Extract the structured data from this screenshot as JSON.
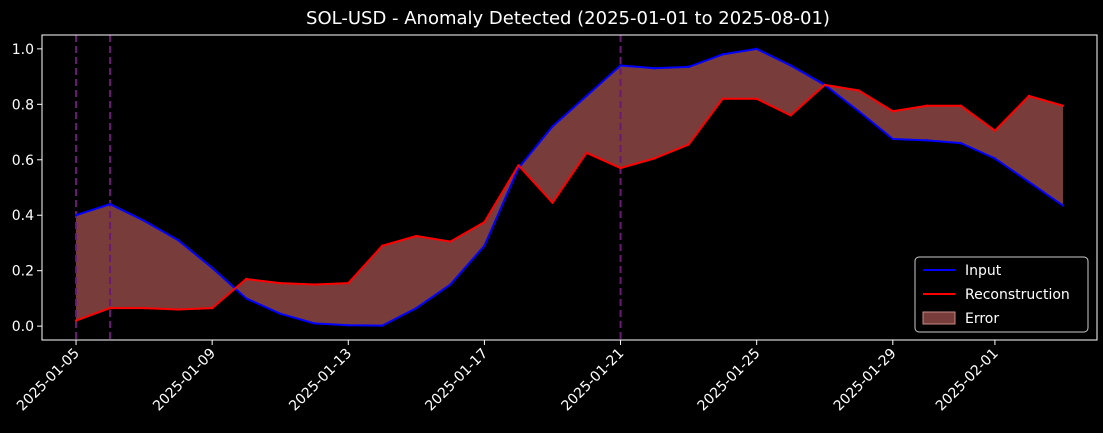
{
  "chart_data": {
    "type": "line",
    "title": "SOL-USD - Anomaly Detected (2025-01-01 to 2025-08-01)",
    "xlabel": "",
    "ylabel": "",
    "x": [
      "2025-01-05",
      "2025-01-06",
      "2025-01-07",
      "2025-01-08",
      "2025-01-09",
      "2025-01-10",
      "2025-01-11",
      "2025-01-12",
      "2025-01-13",
      "2025-01-14",
      "2025-01-15",
      "2025-01-16",
      "2025-01-17",
      "2025-01-18",
      "2025-01-19",
      "2025-01-20",
      "2025-01-21",
      "2025-01-22",
      "2025-01-23",
      "2025-01-24",
      "2025-01-25",
      "2025-01-26",
      "2025-01-27",
      "2025-01-28",
      "2025-01-29",
      "2025-01-30",
      "2025-01-31",
      "2025-02-01",
      "2025-02-02",
      "2025-02-03"
    ],
    "xlim": [
      "2025-01-04",
      "2025-02-04"
    ],
    "ylim": [
      -0.05,
      1.05
    ],
    "x_ticks": [
      "2025-01-05",
      "2025-01-09",
      "2025-01-13",
      "2025-01-17",
      "2025-01-21",
      "2025-01-25",
      "2025-01-29",
      "2025-02-01"
    ],
    "y_ticks": [
      "0.0",
      "0.2",
      "0.4",
      "0.6",
      "0.8",
      "1.0"
    ],
    "series": [
      {
        "name": "Input",
        "color": "#0000ff",
        "values": [
          0.4,
          0.44,
          0.38,
          0.31,
          0.21,
          0.1,
          0.045,
          0.01,
          0.003,
          0.002,
          0.065,
          0.15,
          0.29,
          0.57,
          0.72,
          0.83,
          0.94,
          0.93,
          0.935,
          0.98,
          1.0,
          0.94,
          0.87,
          0.775,
          0.675,
          0.67,
          0.66,
          0.605,
          0.52,
          0.435
        ]
      },
      {
        "name": "Reconstruction",
        "color": "#ff0000",
        "values": [
          0.02,
          0.065,
          0.065,
          0.06,
          0.065,
          0.17,
          0.155,
          0.15,
          0.155,
          0.29,
          0.325,
          0.305,
          0.375,
          0.58,
          0.445,
          0.625,
          0.57,
          0.605,
          0.655,
          0.82,
          0.82,
          0.76,
          0.87,
          0.85,
          0.775,
          0.795,
          0.795,
          0.705,
          0.83,
          0.795
        ]
      }
    ],
    "error_fill": {
      "name": "Error",
      "color": "#a0524f"
    },
    "anomaly_lines": [
      "2025-01-05",
      "2025-01-06",
      "2025-01-21"
    ],
    "anomaly_color": "#6a1a73",
    "grid": false,
    "legend_position": "lower-right"
  }
}
